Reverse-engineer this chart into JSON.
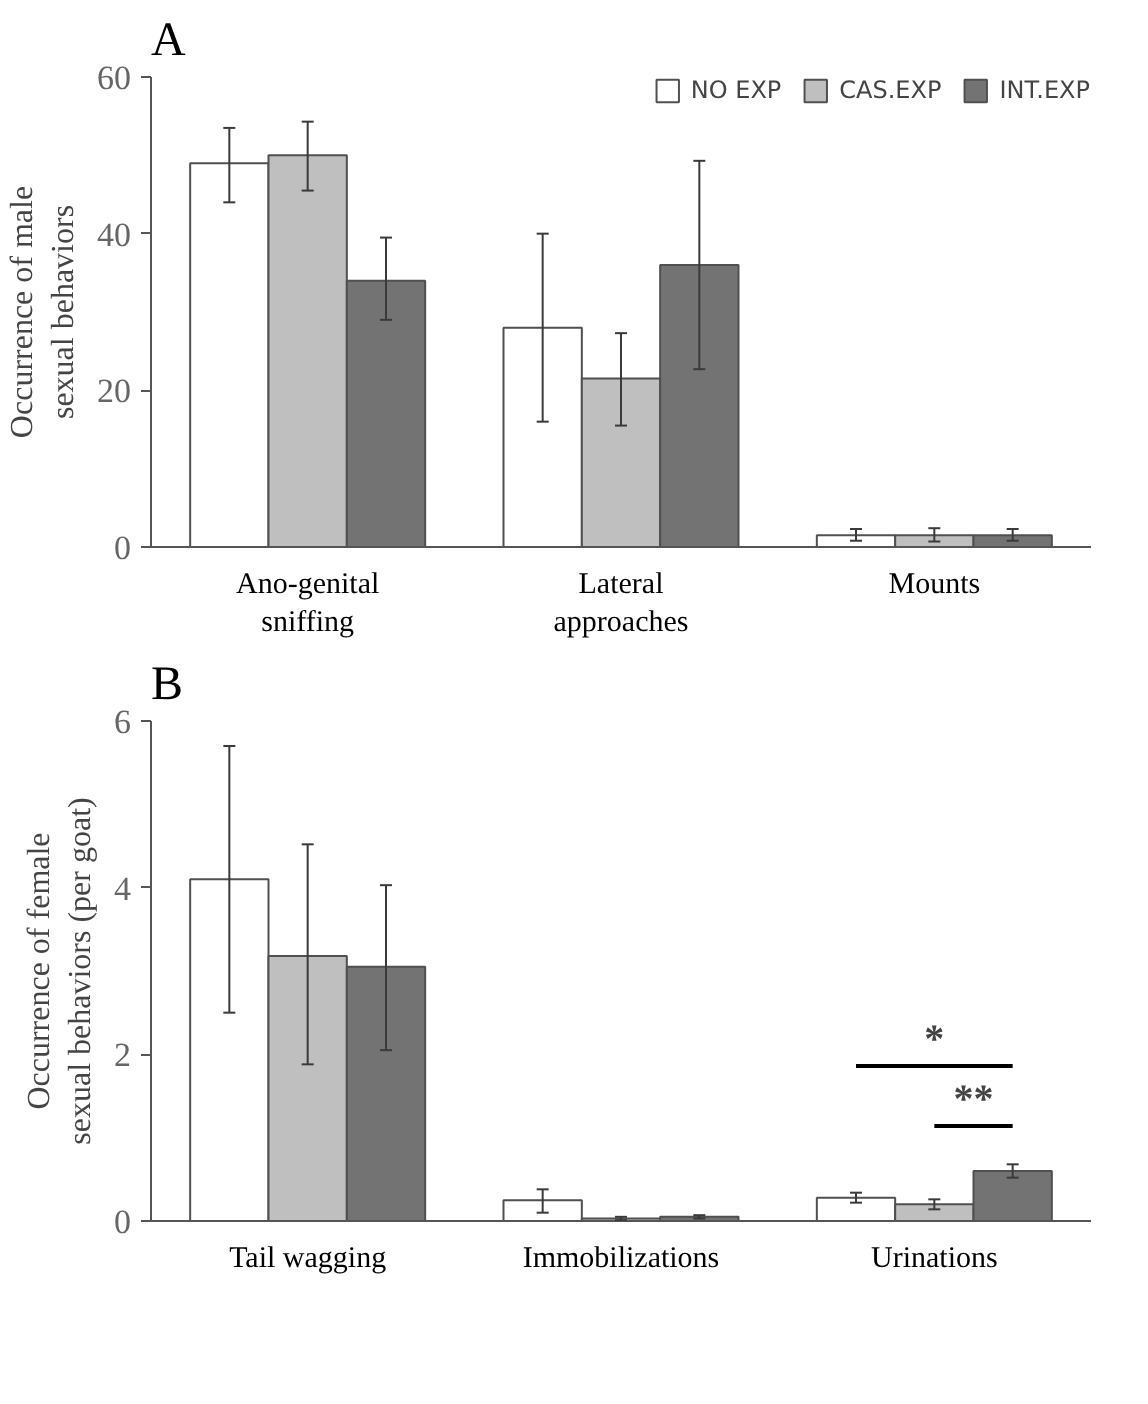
{
  "chart_data": [
    {
      "type": "bar",
      "title": "A",
      "ylabel": "Occurrence of male sexual behaviors",
      "categories": [
        "Ano-genital sniffing",
        "Lateral approaches",
        "Mounts"
      ],
      "ylim": [
        0,
        60
      ],
      "yticks": [
        0,
        20,
        40,
        60
      ],
      "grid": false,
      "legend": "top right",
      "series": [
        {
          "name": "NO EXP",
          "color": "#ffffff",
          "values": [
            49,
            28,
            1.5
          ],
          "errors": [
            [
              44,
              53.5
            ],
            [
              16,
              40
            ],
            [
              0.8,
              2.3
            ]
          ]
        },
        {
          "name": "CAS.EXP",
          "color": "#bfbfbf",
          "values": [
            50,
            21.5,
            1.5
          ],
          "errors": [
            [
              45.5,
              54.3
            ],
            [
              15.5,
              27.3
            ],
            [
              0.7,
              2.4
            ]
          ]
        },
        {
          "name": "INT.EXP",
          "color": "#737373",
          "values": [
            34,
            36,
            1.5
          ],
          "errors": [
            [
              29,
              39.5
            ],
            [
              22.7,
              49.3
            ],
            [
              0.8,
              2.3
            ]
          ]
        }
      ]
    },
    {
      "type": "bar",
      "title": "B",
      "ylabel": "Occurrence of female sexual behaviors (per goat)",
      "categories": [
        "Tail wagging",
        "Immobilizations",
        "Urinations"
      ],
      "ylim": [
        0,
        6
      ],
      "yticks": [
        0,
        2,
        4,
        6
      ],
      "grid": false,
      "legend": false,
      "annotations": [
        "*",
        "**"
      ],
      "series": [
        {
          "color": "#ffffff",
          "values": [
            4.1,
            0.25,
            0.28
          ],
          "errors": [
            [
              2.5,
              5.7
            ],
            [
              0.1,
              0.38
            ],
            [
              0.22,
              0.34
            ]
          ]
        },
        {
          "color": "#bfbfbf",
          "values": [
            3.18,
            0.03,
            0.2
          ],
          "errors": [
            [
              1.88,
              4.52
            ],
            [
              0.01,
              0.05
            ],
            [
              0.14,
              0.26
            ]
          ]
        },
        {
          "color": "#737373",
          "values": [
            3.05,
            0.05,
            0.6
          ],
          "errors": [
            [
              2.05,
              4.03
            ],
            [
              0.03,
              0.07
            ],
            [
              0.52,
              0.68
            ]
          ]
        }
      ]
    }
  ]
}
